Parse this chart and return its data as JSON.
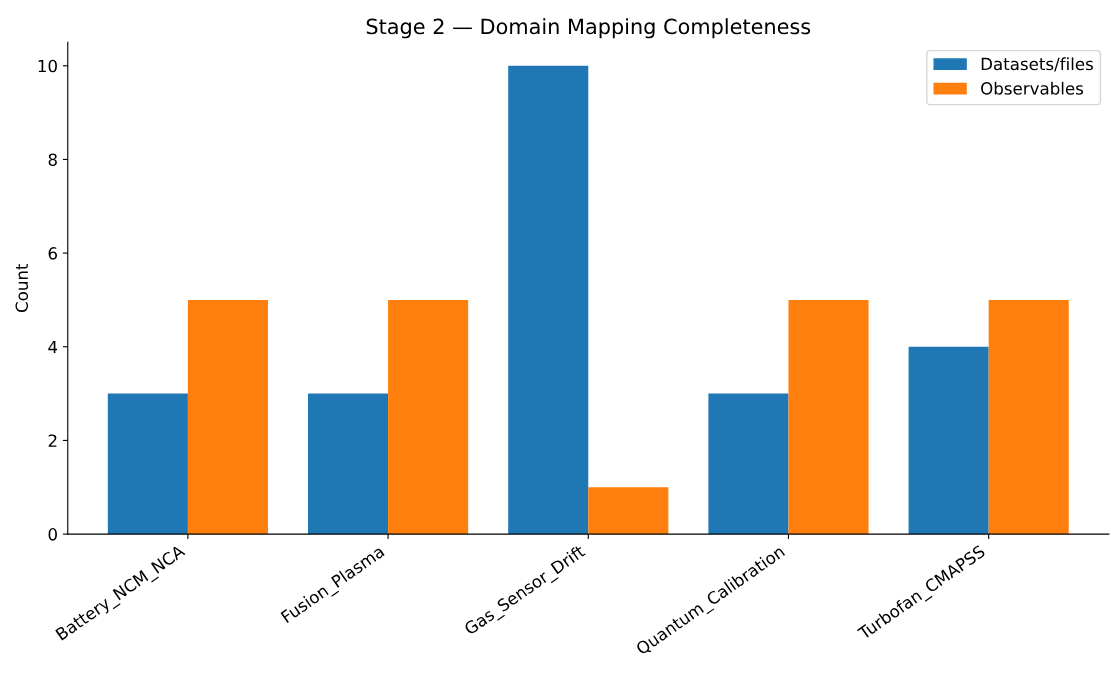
{
  "chart_data": {
    "type": "bar",
    "title": "Stage 2 — Domain Mapping Completeness",
    "ylabel": "Count",
    "categories": [
      "Battery_NCM_NCA",
      "Fusion_Plasma",
      "Gas_Sensor_Drift",
      "Quantum_Calibration",
      "Turbofan_CMAPSS"
    ],
    "series": [
      {
        "name": "Datasets/files",
        "color": "#1f77b4",
        "values": [
          3,
          3,
          10,
          3,
          4
        ]
      },
      {
        "name": "Observables",
        "color": "#ff7f0e",
        "values": [
          5,
          5,
          1,
          5,
          5
        ]
      }
    ],
    "ylim": [
      0,
      10.5
    ],
    "yticks": [
      0,
      2,
      4,
      6,
      8,
      10
    ],
    "grid": false,
    "legend": "top right"
  }
}
